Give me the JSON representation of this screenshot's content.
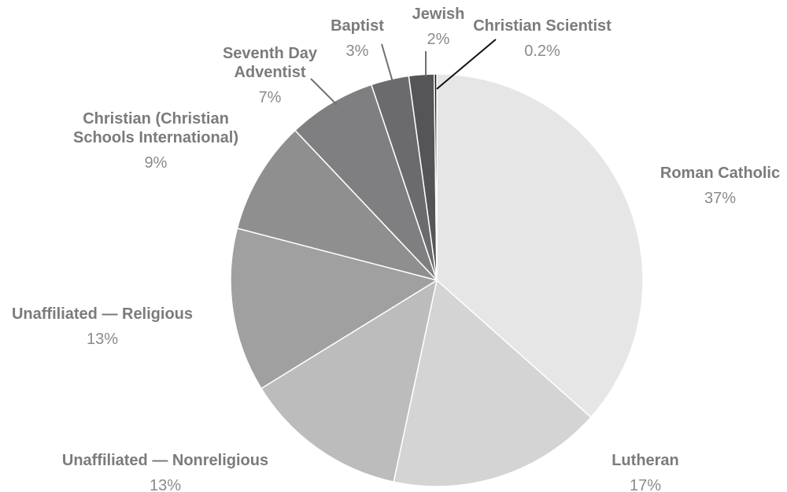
{
  "chart_data": {
    "type": "pie",
    "title": "",
    "start_angle_deg": 0,
    "direction": "clockwise",
    "slices": [
      {
        "name": "Roman Catholic",
        "value": 37,
        "label": "37%",
        "color": "#e6e6e7"
      },
      {
        "name": "Lutheran",
        "value": 17,
        "label": "17%",
        "color": "#d4d4d5"
      },
      {
        "name": "Unaffiliated — Nonreligious",
        "value": 13,
        "label": "13%",
        "color": "#bcbcbd"
      },
      {
        "name": "Unaffiliated — Religious",
        "value": 13,
        "label": "13%",
        "color": "#a0a0a1"
      },
      {
        "name": "Christian (Christian Schools International)",
        "value": 9,
        "label": "9%",
        "color": "#8f8f90"
      },
      {
        "name": "Seventh Day Adventist",
        "value": 7,
        "label": "7%",
        "color": "#7f7f81"
      },
      {
        "name": "Baptist",
        "value": 3,
        "label": "3%",
        "color": "#6b6b6d"
      },
      {
        "name": "Jewish",
        "value": 2,
        "label": "2%",
        "color": "#555557"
      },
      {
        "name": "Christian Scientist",
        "value": 0.2,
        "label": "0.2%",
        "color": "#1a1a1a"
      }
    ]
  }
}
